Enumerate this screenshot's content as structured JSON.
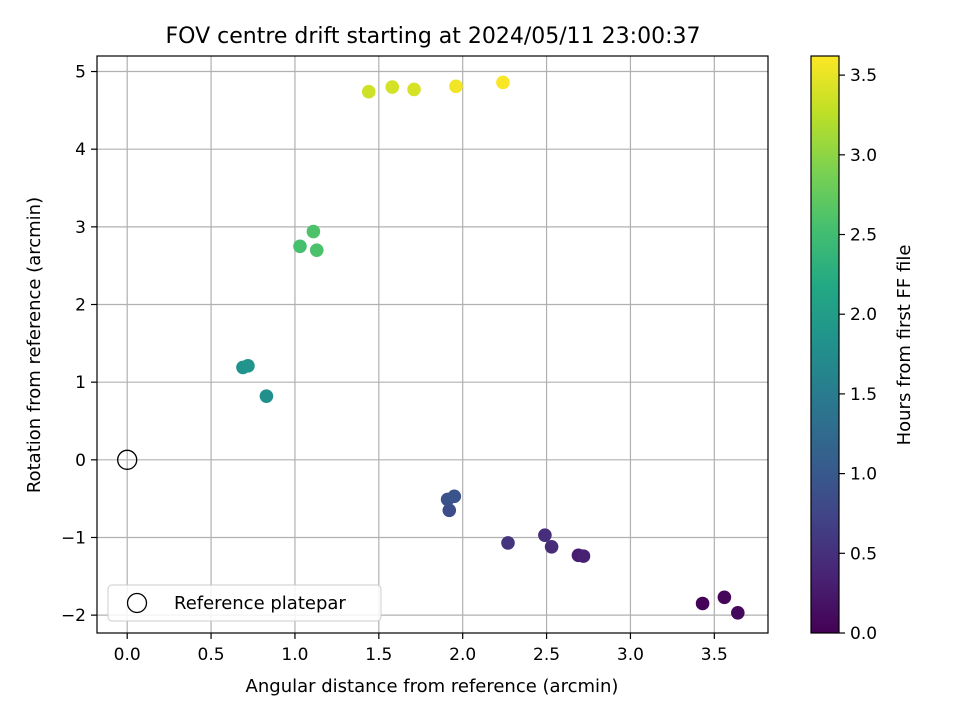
{
  "chart_data": {
    "type": "scatter",
    "title": "FOV centre drift starting at 2024/05/11 23:00:37",
    "xlabel": "Angular distance from reference (arcmin)",
    "ylabel": "Rotation from reference (arcmin)",
    "xlim": [
      -0.18,
      3.82
    ],
    "ylim": [
      -2.23,
      5.2
    ],
    "xticks": [
      0.0,
      0.5,
      1.0,
      1.5,
      2.0,
      2.5,
      3.0,
      3.5
    ],
    "xtick_labels": [
      "0.0",
      "0.5",
      "1.0",
      "1.5",
      "2.0",
      "2.5",
      "3.0",
      "3.5"
    ],
    "yticks": [
      -2,
      -1,
      0,
      1,
      2,
      3,
      4,
      5
    ],
    "ytick_labels": [
      "−2",
      "−1",
      "0",
      "1",
      "2",
      "3",
      "4",
      "5"
    ],
    "grid": true,
    "colorbar": {
      "label": "Hours from first FF file",
      "range": [
        0.0,
        3.62
      ],
      "ticks": [
        0.0,
        0.5,
        1.0,
        1.5,
        2.0,
        2.5,
        3.0,
        3.5
      ],
      "tick_labels": [
        "0.0",
        "0.5",
        "1.0",
        "1.5",
        "2.0",
        "2.5",
        "3.0",
        "3.5"
      ],
      "colormap": "viridis"
    },
    "legend": {
      "placement": "lower-left",
      "entries": [
        {
          "label": "Reference platepar",
          "marker": "open-circle"
        }
      ]
    },
    "reference_point": {
      "x": 0.0,
      "y": 0.0
    },
    "points": [
      {
        "x": 3.43,
        "y": -1.85,
        "hours": 0.02
      },
      {
        "x": 3.56,
        "y": -1.77,
        "hours": 0.05
      },
      {
        "x": 3.64,
        "y": -1.97,
        "hours": 0.08
      },
      {
        "x": 2.69,
        "y": -1.23,
        "hours": 0.3
      },
      {
        "x": 2.72,
        "y": -1.24,
        "hours": 0.33
      },
      {
        "x": 2.53,
        "y": -1.12,
        "hours": 0.45
      },
      {
        "x": 2.49,
        "y": -0.97,
        "hours": 0.48
      },
      {
        "x": 2.27,
        "y": -1.07,
        "hours": 0.55
      },
      {
        "x": 1.92,
        "y": -0.65,
        "hours": 0.85
      },
      {
        "x": 1.91,
        "y": -0.51,
        "hours": 0.9
      },
      {
        "x": 1.95,
        "y": -0.47,
        "hours": 0.93
      },
      {
        "x": 0.83,
        "y": 0.82,
        "hours": 1.8
      },
      {
        "x": 0.69,
        "y": 1.19,
        "hours": 1.83
      },
      {
        "x": 0.72,
        "y": 1.21,
        "hours": 1.86
      },
      {
        "x": 1.03,
        "y": 2.75,
        "hours": 2.55
      },
      {
        "x": 1.13,
        "y": 2.7,
        "hours": 2.58
      },
      {
        "x": 1.11,
        "y": 2.94,
        "hours": 2.6
      },
      {
        "x": 1.44,
        "y": 4.74,
        "hours": 3.35
      },
      {
        "x": 1.58,
        "y": 4.8,
        "hours": 3.38
      },
      {
        "x": 1.71,
        "y": 4.77,
        "hours": 3.4
      },
      {
        "x": 1.96,
        "y": 4.81,
        "hours": 3.55
      },
      {
        "x": 2.24,
        "y": 4.86,
        "hours": 3.6
      }
    ]
  }
}
